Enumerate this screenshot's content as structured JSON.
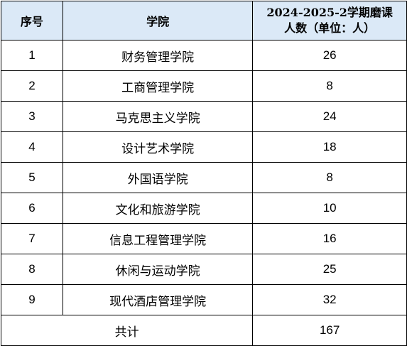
{
  "table": {
    "headers": {
      "index": "序号",
      "college": "学院",
      "count_line1": "2024-2025-2学期磨课",
      "count_line2": "人数（单位：人）"
    },
    "rows": [
      {
        "index": "1",
        "college": "财务管理学院",
        "count": "26"
      },
      {
        "index": "2",
        "college": "工商管理学院",
        "count": "8"
      },
      {
        "index": "3",
        "college": "马克思主义学院",
        "count": "24"
      },
      {
        "index": "4",
        "college": "设计艺术学院",
        "count": "18"
      },
      {
        "index": "5",
        "college": "外国语学院",
        "count": "8"
      },
      {
        "index": "6",
        "college": "文化和旅游学院",
        "count": "10"
      },
      {
        "index": "7",
        "college": "信息工程管理学院",
        "count": "16"
      },
      {
        "index": "8",
        "college": "休闲与运动学院",
        "count": "25"
      },
      {
        "index": "9",
        "college": "现代酒店管理学院",
        "count": "32"
      }
    ],
    "total": {
      "label": "共计",
      "count": "167"
    },
    "colors": {
      "header_background": "#dbe9f7",
      "border": "#000000"
    }
  }
}
